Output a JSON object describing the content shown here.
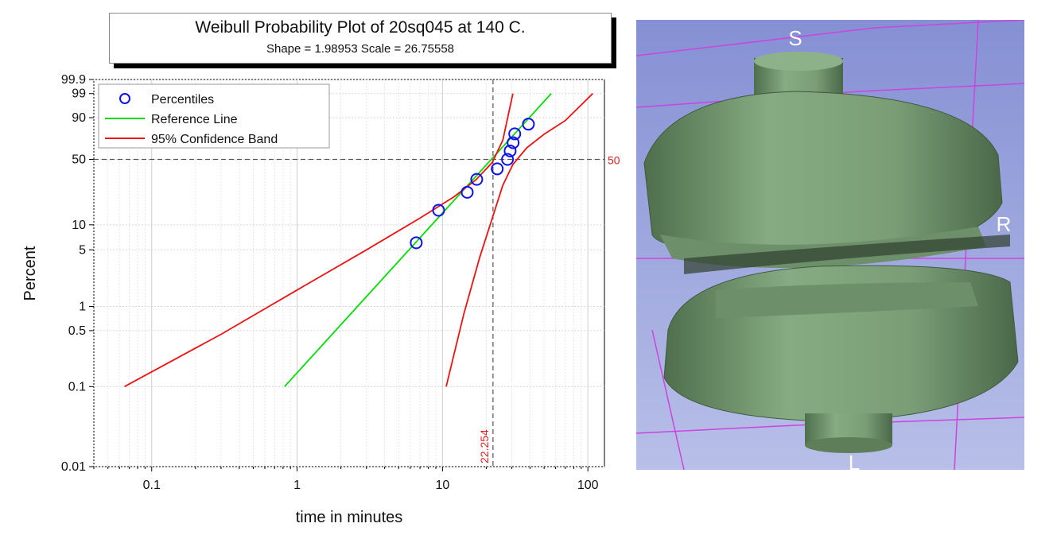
{
  "chart_data": {
    "type": "scatter",
    "title": "Weibull Probability Plot of 20sq045 at 140 C.",
    "subtitle": "Shape = 1.98953  Scale = 26.75558",
    "xlabel": "time in minutes",
    "ylabel": "Percent",
    "x_scale": "log",
    "y_scale": "weibull-probability",
    "xlim": [
      0.04,
      130
    ],
    "ylim": [
      0.01,
      99.9
    ],
    "x_ticks": [
      "0.1",
      "1",
      "10",
      "100"
    ],
    "x_tick_values": [
      0.1,
      1,
      10,
      100
    ],
    "y_ticks": [
      "0.01",
      "0.1",
      "0.5",
      "1",
      "5",
      "10",
      "50",
      "90",
      "99",
      "99.9"
    ],
    "y_tick_values": [
      0.01,
      0.1,
      0.5,
      1,
      5,
      10,
      50,
      90,
      99,
      99.9
    ],
    "grid": true,
    "legend_position": "top-left",
    "series": [
      {
        "name": "Percentiles",
        "kind": "points",
        "color": "#1010ee",
        "x": [
          6.6,
          9.4,
          14.8,
          17.2,
          23.8,
          28.0,
          29.2,
          30.6,
          31.4,
          39.0
        ],
        "y": [
          6.1,
          14.8,
          23.6,
          32.3,
          41.0,
          50.0,
          58.7,
          67.4,
          76.4,
          85.2
        ]
      },
      {
        "name": "Reference Line",
        "kind": "line",
        "color": "#00dd00",
        "x": [
          0.82,
          56.0
        ],
        "y": [
          0.1,
          99.0
        ]
      },
      {
        "name": "95% Confidence Band",
        "kind": "line",
        "color": "#ee1111",
        "x": [
          0.065,
          0.3,
          1.0,
          3.0,
          7.0,
          12.0,
          17.0,
          22.0,
          26.0,
          30.5
        ],
        "y": [
          0.1,
          0.45,
          1.6,
          5.0,
          12.0,
          21.0,
          32.0,
          47.0,
          70.0,
          99.0
        ]
      },
      {
        "name": "95% Confidence Band",
        "kind": "line",
        "color": "#ee1111",
        "x": [
          10.6,
          14.0,
          18.0,
          22.0,
          26.0,
          30.5,
          38.0,
          50.0,
          70.0,
          108.0
        ],
        "y": [
          0.1,
          0.8,
          4.0,
          12.0,
          28.0,
          45.0,
          62.0,
          76.0,
          88.0,
          99.0
        ]
      }
    ],
    "reference_lines": {
      "x_value": 22.254,
      "x_label": "22.254",
      "y_value": 50,
      "y_label": "50"
    }
  },
  "scene": {
    "labels": {
      "top": "S",
      "right": "R",
      "bottom": "L"
    },
    "colors": {
      "background": "#8f9ad8",
      "object": "#7fa27b",
      "lines": "#cc44dd"
    }
  }
}
